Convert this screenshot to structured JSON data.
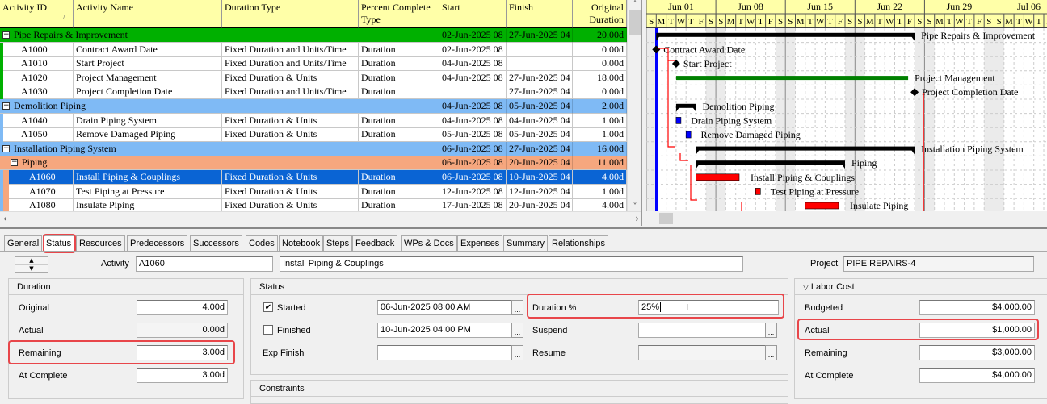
{
  "grid": {
    "columns": [
      "Activity ID",
      "Activity Name",
      "Duration Type",
      "Percent Complete Type",
      "Start",
      "Finish",
      "Original Duration"
    ],
    "rows": [
      {
        "type": "wbs",
        "level": 0,
        "name": "Pipe Repairs & Improvement",
        "start": "02-Jun-2025 08",
        "finish": "27-Jun-2025 04",
        "orig": "20.00d",
        "color": "#00b000",
        "bar": "summary"
      },
      {
        "type": "task",
        "id": "A1000",
        "name": "Contract Award Date",
        "dur_type": "Fixed Duration and Units/Time",
        "pct_type": "Duration",
        "start": "02-Jun-2025 08",
        "finish": "",
        "orig": "0.00d",
        "bar": "milestone"
      },
      {
        "type": "task",
        "id": "A1010",
        "name": "Start Project",
        "dur_type": "Fixed Duration and Units/Time",
        "pct_type": "Duration",
        "start": "04-Jun-2025 08",
        "finish": "",
        "orig": "0.00d",
        "bar": "milestone"
      },
      {
        "type": "task",
        "id": "A1020",
        "name": "Project Management",
        "dur_type": "Fixed Duration & Units",
        "pct_type": "Duration",
        "start": "04-Jun-2025 08",
        "finish": "27-Jun-2025 04",
        "orig": "18.00d",
        "bar": "loe"
      },
      {
        "type": "task",
        "id": "A1030",
        "name": "Project Completion Date",
        "dur_type": "Fixed Duration and Units/Time",
        "pct_type": "Duration",
        "start": "",
        "finish": "27-Jun-2025 04",
        "orig": "0.00d",
        "bar": "milestone"
      },
      {
        "type": "wbs",
        "level": 0,
        "name": "Demolition Piping",
        "start": "04-Jun-2025 08",
        "finish": "05-Jun-2025 04",
        "orig": "2.00d",
        "color": "#7fbaf5",
        "bar": "summary"
      },
      {
        "type": "task",
        "id": "A1040",
        "name": "Drain Piping System",
        "dur_type": "Fixed Duration & Units",
        "pct_type": "Duration",
        "start": "04-Jun-2025 08",
        "finish": "04-Jun-2025 04",
        "orig": "1.00d",
        "bar": "normal"
      },
      {
        "type": "task",
        "id": "A1050",
        "name": "Remove Damaged Piping",
        "dur_type": "Fixed Duration & Units",
        "pct_type": "Duration",
        "start": "05-Jun-2025 08",
        "finish": "05-Jun-2025 04",
        "orig": "1.00d",
        "bar": "normal"
      },
      {
        "type": "wbs",
        "level": 0,
        "name": "Installation Piping System",
        "start": "06-Jun-2025 08",
        "finish": "27-Jun-2025 04",
        "orig": "16.00d",
        "color": "#7fbaf5",
        "bar": "summary"
      },
      {
        "type": "wbs",
        "level": 1,
        "name": "Piping",
        "start": "06-Jun-2025 08",
        "finish": "20-Jun-2025 04",
        "orig": "11.00d",
        "color": "#f6a77e",
        "bar": "summary"
      },
      {
        "type": "task",
        "id": "A1060",
        "name": "Install Piping & Couplings",
        "dur_type": "Fixed Duration & Units",
        "pct_type": "Duration",
        "start": "06-Jun-2025 08",
        "finish": "10-Jun-2025 04",
        "orig": "4.00d",
        "bar": "critical",
        "selected": true
      },
      {
        "type": "task",
        "id": "A1070",
        "name": "Test Piping at Pressure",
        "dur_type": "Fixed Duration & Units",
        "pct_type": "Duration",
        "start": "12-Jun-2025 08",
        "finish": "12-Jun-2025 04",
        "orig": "1.00d",
        "bar": "critical"
      },
      {
        "type": "task",
        "id": "A1080",
        "name": "Insulate Piping",
        "dur_type": "Fixed Duration & Units",
        "pct_type": "Duration",
        "start": "17-Jun-2025 08",
        "finish": "20-Jun-2025 04",
        "orig": "4.00d",
        "bar": "critical"
      }
    ],
    "selected_color": "#0a64d4",
    "header_color": "#ffffa8"
  },
  "gantt": {
    "weeks": [
      "Jun 01",
      "Jun 08",
      "Jun 15",
      "Jun 22",
      "Jun 29",
      "Jul 06"
    ],
    "days": [
      "S",
      "M",
      "T",
      "W",
      "T",
      "F",
      "S"
    ],
    "colors": {
      "summary": "#000000",
      "critical": "#ff0000",
      "normal": "#0000ff",
      "loe": "#008000",
      "data_date": "#0000ff"
    }
  },
  "details": {
    "tabs": [
      "General",
      "Status",
      "Resources",
      "Predecessors",
      "Successors",
      "Codes",
      "Notebook",
      "Steps",
      "Feedback",
      "WPs & Docs",
      "Expenses",
      "Summary",
      "Relationships"
    ],
    "active_tab": "Status",
    "activity_label": "Activity",
    "activity_id": "A1060",
    "activity_name": "Install Piping & Couplings",
    "project_label": "Project",
    "project": "PIPE REPAIRS-4",
    "duration": {
      "title": "Duration",
      "original_label": "Original",
      "original": "4.00d",
      "actual_label": "Actual",
      "actual": "0.00d",
      "remaining_label": "Remaining",
      "remaining": "3.00d",
      "at_complete_label": "At Complete",
      "at_complete": "3.00d"
    },
    "status": {
      "title": "Status",
      "started_label": "Started",
      "started_checked": true,
      "started": "06-Jun-2025 08:00 AM",
      "finished_label": "Finished",
      "finished_checked": false,
      "finished": "10-Jun-2025 04:00 PM",
      "exp_finish_label": "Exp Finish",
      "exp_finish": "",
      "duration_pct_label": "Duration %",
      "duration_pct": "25%",
      "suspend_label": "Suspend",
      "suspend": "",
      "resume_label": "Resume",
      "resume": ""
    },
    "constraints_title": "Constraints",
    "labor_cost": {
      "title": "Labor Cost",
      "budgeted_label": "Budgeted",
      "budgeted": "$4,000.00",
      "actual_label": "Actual",
      "actual": "$1,000.00",
      "remaining_label": "Remaining",
      "remaining": "$3,000.00",
      "at_complete_label": "At Complete",
      "at_complete": "$4,000.00"
    },
    "ellipsis": "...",
    "check": "✔",
    "collapse": "▽"
  }
}
